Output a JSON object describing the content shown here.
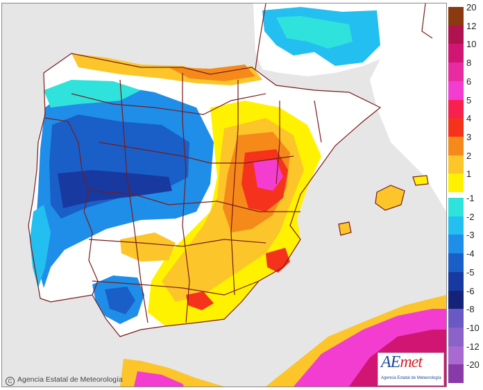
{
  "legend": {
    "title": "",
    "entries": [
      {
        "label": "20",
        "color": "#8b3a10"
      },
      {
        "label": "12",
        "color": "#b0124f"
      },
      {
        "label": "10",
        "color": "#d01573"
      },
      {
        "label": "8",
        "color": "#e82ba0"
      },
      {
        "label": "6",
        "color": "#f23dd0"
      },
      {
        "label": "5",
        "color": "#f7204f"
      },
      {
        "label": "4",
        "color": "#f5321c"
      },
      {
        "label": "3",
        "color": "#f58a1a"
      },
      {
        "label": "2",
        "color": "#fcc52a"
      },
      {
        "label": "1",
        "color": "#fff200"
      },
      {
        "label": "-1",
        "color": "#2fe3dc"
      },
      {
        "label": "-2",
        "color": "#22bff0"
      },
      {
        "label": "-3",
        "color": "#1f8ee8"
      },
      {
        "label": "-4",
        "color": "#1a5fc8"
      },
      {
        "label": "-5",
        "color": "#183aa0"
      },
      {
        "label": "-6",
        "color": "#14227a"
      },
      {
        "label": "-8",
        "color": "#6a58c4"
      },
      {
        "label": "-10",
        "color": "#8a62c8"
      },
      {
        "label": "-12",
        "color": "#a86ad0"
      },
      {
        "label": "-20",
        "color": "#8a3aa8"
      }
    ]
  },
  "copyright": "Agencia Estatal de Meteorología",
  "logo": {
    "text_a": "AE",
    "text_b": "met",
    "subtitle": "Agencia Estatal de Meteorología"
  },
  "map": {
    "region": "Iberian Peninsula and Balearic Islands",
    "colors": {
      "land_neutral": "#ffffff",
      "sea": "#e6e6e6",
      "borders": "#7a1a1a"
    }
  }
}
